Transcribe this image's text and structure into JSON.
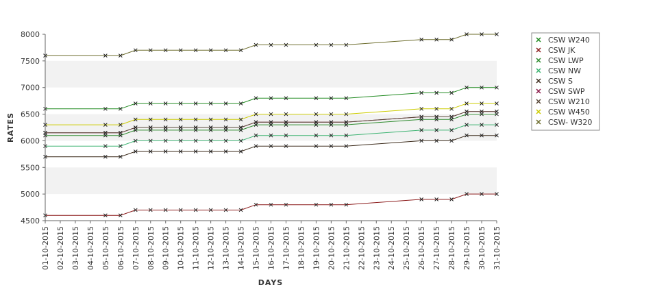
{
  "chart_data": {
    "type": "line",
    "title": "",
    "xlabel": "DAYS",
    "ylabel": "RATES",
    "ylim": [
      4500,
      8000
    ],
    "yticks": [
      4500,
      5000,
      5500,
      6000,
      6500,
      7000,
      7500,
      8000
    ],
    "grid": "alternating horizontal bands",
    "legend_position": "right",
    "categories": [
      "01-10-2015",
      "02-10-2015",
      "03-10-2015",
      "04-10-2015",
      "05-10-2015",
      "06-10-2015",
      "07-10-2015",
      "08-10-2015",
      "09-10-2015",
      "10-10-2015",
      "11-10-2015",
      "12-10-2015",
      "13-10-2015",
      "14-10-2015",
      "15-10-2015",
      "16-10-2015",
      "17-10-2015",
      "18-10-2015",
      "19-10-2015",
      "20-10-2015",
      "21-10-2015",
      "22-10-2015",
      "23-10-2015",
      "24-10-2015",
      "25-10-2015",
      "26-10-2015",
      "27-10-2015",
      "28-10-2015",
      "29-10-2015",
      "30-10-2015",
      "31-10-2015"
    ],
    "series": [
      {
        "name": "CSW  W240",
        "color": "#228b22",
        "values": [
          6600,
          null,
          null,
          null,
          6600,
          6600,
          6700,
          6700,
          6700,
          6700,
          6700,
          6700,
          6700,
          6700,
          6800,
          6800,
          6800,
          null,
          6800,
          6800,
          6800,
          null,
          null,
          null,
          null,
          6900,
          6900,
          6900,
          7000,
          7000,
          7000
        ]
      },
      {
        "name": "CSW JK",
        "color": "#8b1a1a",
        "values": [
          4600,
          null,
          null,
          null,
          4600,
          4600,
          4700,
          4700,
          4700,
          4700,
          4700,
          4700,
          4700,
          4700,
          4800,
          4800,
          4800,
          null,
          4800,
          4800,
          4800,
          null,
          null,
          null,
          null,
          4900,
          4900,
          4900,
          5000,
          5000,
          5000
        ]
      },
      {
        "name": "CSW LWP",
        "color": "#2e8b2e",
        "values": [
          6100,
          null,
          null,
          null,
          6100,
          6100,
          6200,
          6200,
          6200,
          6200,
          6200,
          6200,
          6200,
          6200,
          6300,
          6300,
          6300,
          null,
          6300,
          6300,
          6300,
          null,
          null,
          null,
          null,
          6400,
          6400,
          6400,
          6500,
          6500,
          6500
        ]
      },
      {
        "name": "CSW NW",
        "color": "#3cb371",
        "values": [
          5900,
          null,
          null,
          null,
          5900,
          5900,
          6000,
          6000,
          6000,
          6000,
          6000,
          6000,
          6000,
          6000,
          6100,
          6100,
          6100,
          null,
          6100,
          6100,
          6100,
          null,
          null,
          null,
          null,
          6200,
          6200,
          6200,
          6300,
          6300,
          6300
        ]
      },
      {
        "name": "CSW S",
        "color": "#3b2a1a",
        "values": [
          5700,
          null,
          null,
          null,
          5700,
          5700,
          5800,
          5800,
          5800,
          5800,
          5800,
          5800,
          5800,
          5800,
          5900,
          5900,
          5900,
          null,
          5900,
          5900,
          5900,
          null,
          null,
          null,
          null,
          6000,
          6000,
          6000,
          6100,
          6100,
          6100
        ]
      },
      {
        "name": "CSW SWP",
        "color": "#8b1a4a",
        "values": [
          6150,
          null,
          null,
          null,
          6150,
          6150,
          6250,
          6250,
          6250,
          6250,
          6250,
          6250,
          6250,
          6250,
          6350,
          6350,
          6350,
          null,
          6350,
          6350,
          6350,
          null,
          null,
          null,
          null,
          6450,
          6450,
          6450,
          6550,
          6550,
          6550
        ]
      },
      {
        "name": "CSW W210",
        "color": "#5a4a3a",
        "values": [
          6150,
          null,
          null,
          null,
          6150,
          6150,
          6250,
          6250,
          6250,
          6250,
          6250,
          6250,
          6250,
          6250,
          6350,
          6350,
          6350,
          null,
          6350,
          6350,
          6350,
          null,
          null,
          null,
          null,
          6450,
          6450,
          6450,
          6550,
          6550,
          6550
        ]
      },
      {
        "name": "CSW W450",
        "color": "#cccc00",
        "values": [
          6300,
          null,
          null,
          null,
          6300,
          6300,
          6400,
          6400,
          6400,
          6400,
          6400,
          6400,
          6400,
          6400,
          6500,
          6500,
          6500,
          null,
          6500,
          6500,
          6500,
          null,
          null,
          null,
          null,
          6600,
          6600,
          6600,
          6700,
          6700,
          6700
        ]
      },
      {
        "name": "CSW- W320",
        "color": "#6b6b2a",
        "values": [
          7600,
          null,
          null,
          null,
          7600,
          7600,
          7700,
          7700,
          7700,
          7700,
          7700,
          7700,
          7700,
          7700,
          7800,
          7800,
          7800,
          null,
          7800,
          7800,
          7800,
          null,
          null,
          null,
          null,
          7900,
          7900,
          7900,
          8000,
          8000,
          8000
        ]
      }
    ]
  }
}
